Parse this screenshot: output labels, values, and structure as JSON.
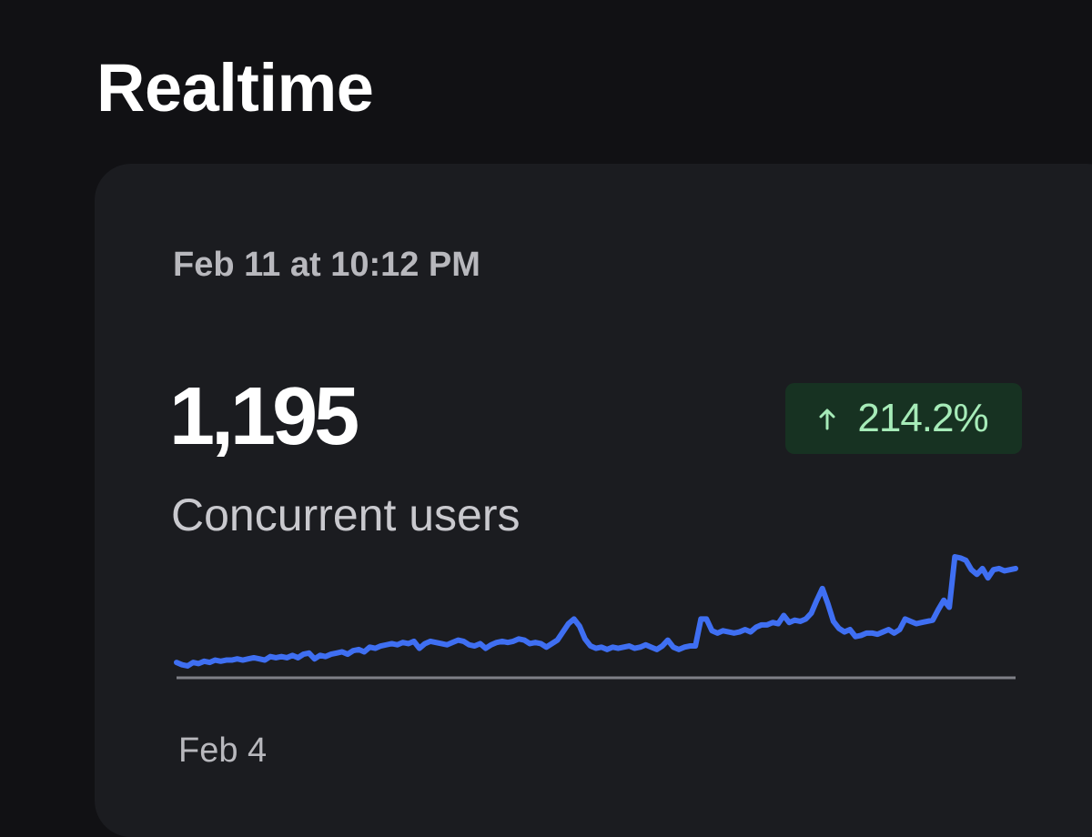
{
  "page": {
    "title": "Realtime"
  },
  "card": {
    "timestamp": "Feb 11 at 10:12 PM",
    "value": "1,195",
    "label": "Concurrent users",
    "change": {
      "icon": "arrow-up-icon",
      "text": "214.2%",
      "color": "#a6ebb8",
      "background": "#173222"
    }
  },
  "chart_data": {
    "type": "line",
    "x_axis_label": "Feb 4",
    "y_scale": "not shown",
    "line_color": "#3f6ff2",
    "baseline_color": "#7f8087",
    "series": [
      {
        "values": [
          10,
          8,
          7,
          10,
          9,
          11,
          10,
          12,
          11,
          12,
          12,
          13,
          12,
          13,
          14,
          13,
          12,
          15,
          14,
          15,
          14,
          16,
          14,
          17,
          18,
          13,
          16,
          15,
          17,
          18,
          19,
          17,
          20,
          21,
          19,
          23,
          22,
          24,
          25,
          26,
          25,
          27,
          26,
          28,
          22,
          26,
          28,
          27,
          26,
          25,
          27,
          29,
          28,
          25,
          24,
          26,
          22,
          25,
          27,
          28,
          27,
          28,
          30,
          29,
          26,
          27,
          26,
          23,
          26,
          29,
          36,
          43,
          47,
          41,
          30,
          24,
          22,
          23,
          21,
          23,
          22,
          23,
          24,
          22,
          23,
          25,
          23,
          21,
          24,
          29,
          23,
          21,
          23,
          24,
          24,
          47,
          47,
          37,
          35,
          37,
          36,
          35,
          36,
          38,
          36,
          40,
          42,
          42,
          44,
          43,
          50,
          44,
          46,
          45,
          47,
          52,
          63,
          73,
          60,
          45,
          39,
          36,
          38,
          32,
          33,
          35,
          35,
          34,
          36,
          38,
          35,
          38,
          47,
          45,
          43,
          44,
          45,
          46,
          55,
          63,
          57,
          100,
          99,
          97,
          89,
          85,
          90,
          82,
          89,
          90,
          88,
          89,
          90
        ]
      }
    ]
  }
}
